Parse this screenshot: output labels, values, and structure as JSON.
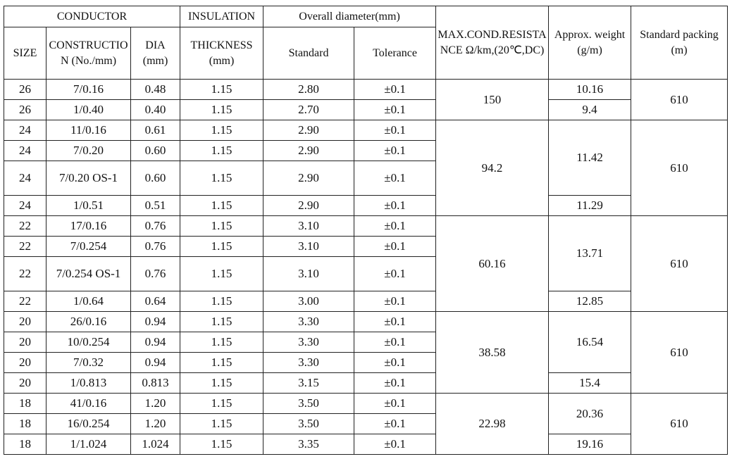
{
  "header": {
    "conductor": "CONDUCTOR",
    "size": "SIZE",
    "construction": "CONSTRUCTION (No./mm)",
    "dia": "DIA (mm)",
    "insulation": "INSULATION",
    "thickness": "THICKNESS (mm)",
    "overall_diameter": "Overall diameter(mm)",
    "standard": "Standard",
    "tolerance": "Tolerance",
    "resistance": "MAX.COND.RESISTANCE Ω/km,(20℃,DC)",
    "weight": "Approx. weight (g/m)",
    "packing": "Standard packing (m)"
  },
  "groups": [
    {
      "resistance": "150",
      "packing": "610",
      "rows": [
        [
          "26",
          "7/0.16",
          "0.48",
          "1.15",
          "2.80",
          "±0.1"
        ],
        [
          "26",
          "1/0.40",
          "0.40",
          "1.15",
          "2.70",
          "±0.1"
        ]
      ],
      "weights": [
        "10.16",
        "9.4"
      ]
    },
    {
      "resistance": "94.2",
      "packing": "610",
      "rows": [
        [
          "24",
          "11/0.16",
          "0.61",
          "1.15",
          "2.90",
          "±0.1"
        ],
        [
          "24",
          "7/0.20",
          "0.60",
          "1.15",
          "2.90",
          "±0.1"
        ],
        [
          "24",
          "7/0.20 OS-1",
          "0.60",
          "1.15",
          "2.90",
          "±0.1"
        ],
        [
          "24",
          "1/0.51",
          "0.51",
          "1.15",
          "2.90",
          "±0.1"
        ]
      ],
      "weights": [
        "11.42",
        "11.29"
      ]
    },
    {
      "resistance": "60.16",
      "packing": "610",
      "rows": [
        [
          "22",
          "17/0.16",
          "0.76",
          "1.15",
          "3.10",
          "±0.1"
        ],
        [
          "22",
          "7/0.254",
          "0.76",
          "1.15",
          "3.10",
          "±0.1"
        ],
        [
          "22",
          "7/0.254 OS-1",
          "0.76",
          "1.15",
          "3.10",
          "±0.1"
        ],
        [
          "22",
          "1/0.64",
          "0.64",
          "1.15",
          "3.00",
          "±0.1"
        ]
      ],
      "weights": [
        "13.71",
        "12.85"
      ]
    },
    {
      "resistance": "38.58",
      "packing": "610",
      "rows": [
        [
          "20",
          "26/0.16",
          "0.94",
          "1.15",
          "3.30",
          "±0.1"
        ],
        [
          "20",
          "10/0.254",
          "0.94",
          "1.15",
          "3.30",
          "±0.1"
        ],
        [
          "20",
          "7/0.32",
          "0.94",
          "1.15",
          "3.30",
          "±0.1"
        ],
        [
          "20",
          "1/0.813",
          "0.813",
          "1.15",
          "3.15",
          "±0.1"
        ]
      ],
      "weights": [
        "16.54",
        "15.4"
      ]
    },
    {
      "resistance": "22.98",
      "packing": "610",
      "rows": [
        [
          "18",
          "41/0.16",
          "1.20",
          "1.15",
          "3.50",
          "±0.1"
        ],
        [
          "18",
          "16/0.254",
          "1.20",
          "1.15",
          "3.50",
          "±0.1"
        ],
        [
          "18",
          "1/1.024",
          "1.024",
          "1.15",
          "3.35",
          "±0.1"
        ]
      ],
      "weights": [
        "20.36",
        "19.16"
      ]
    }
  ]
}
